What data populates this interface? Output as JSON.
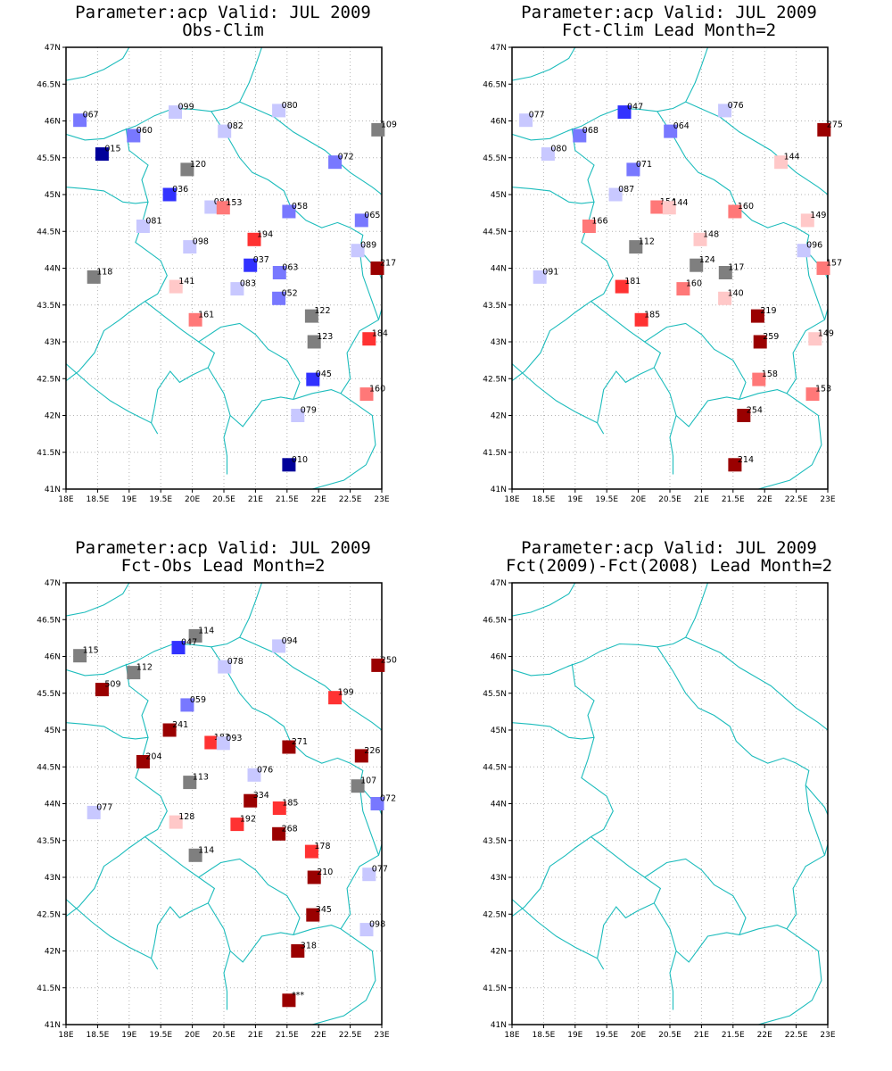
{
  "chart_data": [
    {
      "type": "scatter",
      "title": "Parameter:acp Valid: JUL 2009",
      "subtitle": "Obs-Clim",
      "xlim": [
        18,
        23
      ],
      "ylim": [
        41,
        47
      ],
      "xticks": [
        "18E",
        "18.5E",
        "19E",
        "19.5E",
        "20E",
        "20.5E",
        "21E",
        "21.5E",
        "22E",
        "22.5E",
        "23E"
      ],
      "yticks": [
        "41N",
        "41.5N",
        "42N",
        "42.5N",
        "43N",
        "43.5N",
        "44N",
        "44.5N",
        "45N",
        "45.5N",
        "46N",
        "46.5N",
        "47N"
      ],
      "grid": true,
      "points": [
        {
          "lon": 18.22,
          "lat": 46.01,
          "label": "067",
          "color": "#7878ff"
        },
        {
          "lon": 19.73,
          "lat": 46.12,
          "label": "099",
          "color": "#c8c8ff"
        },
        {
          "lon": 21.37,
          "lat": 46.14,
          "label": "080",
          "color": "#c8c8ff"
        },
        {
          "lon": 22.94,
          "lat": 45.88,
          "label": "109",
          "color": "#7f7f7f"
        },
        {
          "lon": 19.07,
          "lat": 45.8,
          "label": "060",
          "color": "#7878ff"
        },
        {
          "lon": 20.51,
          "lat": 45.86,
          "label": "082",
          "color": "#c8c8ff"
        },
        {
          "lon": 18.57,
          "lat": 45.55,
          "label": "015",
          "color": "#00009a"
        },
        {
          "lon": 19.92,
          "lat": 45.34,
          "label": "120",
          "color": "#7f7f7f"
        },
        {
          "lon": 22.26,
          "lat": 45.44,
          "label": "072",
          "color": "#7878ff"
        },
        {
          "lon": 19.64,
          "lat": 45.0,
          "label": "036",
          "color": "#3232ff"
        },
        {
          "lon": 20.3,
          "lat": 44.83,
          "label": "084",
          "color": "#c8c8ff"
        },
        {
          "lon": 20.49,
          "lat": 44.82,
          "label": "153",
          "color": "#ff7878"
        },
        {
          "lon": 21.53,
          "lat": 44.77,
          "label": "058",
          "color": "#7878ff"
        },
        {
          "lon": 22.68,
          "lat": 44.65,
          "label": "065",
          "color": "#7878ff"
        },
        {
          "lon": 19.22,
          "lat": 44.57,
          "label": "081",
          "color": "#c8c8ff"
        },
        {
          "lon": 20.98,
          "lat": 44.39,
          "label": "194",
          "color": "#ff3232"
        },
        {
          "lon": 19.96,
          "lat": 44.29,
          "label": "098",
          "color": "#c8c8ff"
        },
        {
          "lon": 22.62,
          "lat": 44.24,
          "label": "089",
          "color": "#c8c8ff"
        },
        {
          "lon": 20.92,
          "lat": 44.04,
          "label": "037",
          "color": "#3232ff"
        },
        {
          "lon": 21.38,
          "lat": 43.94,
          "label": "063",
          "color": "#7878ff"
        },
        {
          "lon": 22.93,
          "lat": 44.0,
          "label": "217",
          "color": "#9a0000"
        },
        {
          "lon": 18.44,
          "lat": 43.88,
          "label": "118",
          "color": "#7f7f7f"
        },
        {
          "lon": 19.74,
          "lat": 43.75,
          "label": "141",
          "color": "#ffc8c8"
        },
        {
          "lon": 20.71,
          "lat": 43.72,
          "label": "083",
          "color": "#c8c8ff"
        },
        {
          "lon": 21.37,
          "lat": 43.59,
          "label": "052",
          "color": "#7878ff"
        },
        {
          "lon": 21.89,
          "lat": 43.35,
          "label": "122",
          "color": "#7f7f7f"
        },
        {
          "lon": 20.05,
          "lat": 43.3,
          "label": "161",
          "color": "#ff7878"
        },
        {
          "lon": 21.93,
          "lat": 43.0,
          "label": "123",
          "color": "#7f7f7f"
        },
        {
          "lon": 22.8,
          "lat": 43.04,
          "label": "184",
          "color": "#ff3232"
        },
        {
          "lon": 21.91,
          "lat": 42.49,
          "label": "045",
          "color": "#3232ff"
        },
        {
          "lon": 22.76,
          "lat": 42.29,
          "label": "160",
          "color": "#ff7878"
        },
        {
          "lon": 21.67,
          "lat": 42.0,
          "label": "079",
          "color": "#c8c8ff"
        },
        {
          "lon": 21.53,
          "lat": 41.33,
          "label": "010",
          "color": "#00009a"
        }
      ]
    },
    {
      "type": "scatter",
      "title": "Parameter:acp Valid: JUL 2009",
      "subtitle": "Fct-Clim Lead Month=2",
      "xlim": [
        18,
        23
      ],
      "ylim": [
        41,
        47
      ],
      "xticks": [
        "18E",
        "18.5E",
        "19E",
        "19.5E",
        "20E",
        "20.5E",
        "21E",
        "21.5E",
        "22E",
        "22.5E",
        "23E"
      ],
      "yticks": [
        "41N",
        "41.5N",
        "42N",
        "42.5N",
        "43N",
        "43.5N",
        "44N",
        "44.5N",
        "45N",
        "45.5N",
        "46N",
        "46.5N",
        "47N"
      ],
      "grid": true,
      "points": [
        {
          "lon": 18.22,
          "lat": 46.01,
          "label": "077",
          "color": "#c8c8ff"
        },
        {
          "lon": 19.78,
          "lat": 46.12,
          "label": "047",
          "color": "#3232ff"
        },
        {
          "lon": 21.37,
          "lat": 46.14,
          "label": "076",
          "color": "#c8c8ff"
        },
        {
          "lon": 22.94,
          "lat": 45.88,
          "label": "275",
          "color": "#9a0000"
        },
        {
          "lon": 19.07,
          "lat": 45.8,
          "label": "068",
          "color": "#7878ff"
        },
        {
          "lon": 20.51,
          "lat": 45.86,
          "label": "064",
          "color": "#7878ff"
        },
        {
          "lon": 18.57,
          "lat": 45.55,
          "label": "080",
          "color": "#c8c8ff"
        },
        {
          "lon": 19.92,
          "lat": 45.34,
          "label": "071",
          "color": "#7878ff"
        },
        {
          "lon": 22.26,
          "lat": 45.44,
          "label": "144",
          "color": "#ffc8c8"
        },
        {
          "lon": 19.64,
          "lat": 45.0,
          "label": "087",
          "color": "#c8c8ff"
        },
        {
          "lon": 20.3,
          "lat": 44.83,
          "label": "154",
          "color": "#ff7878"
        },
        {
          "lon": 20.49,
          "lat": 44.82,
          "label": "144",
          "color": "#ffc8c8"
        },
        {
          "lon": 21.53,
          "lat": 44.77,
          "label": "160",
          "color": "#ff7878"
        },
        {
          "lon": 22.68,
          "lat": 44.65,
          "label": "149",
          "color": "#ffc8c8"
        },
        {
          "lon": 19.22,
          "lat": 44.57,
          "label": "166",
          "color": "#ff7878"
        },
        {
          "lon": 20.98,
          "lat": 44.39,
          "label": "148",
          "color": "#ffc8c8"
        },
        {
          "lon": 19.96,
          "lat": 44.29,
          "label": "112",
          "color": "#7f7f7f"
        },
        {
          "lon": 22.62,
          "lat": 44.24,
          "label": "096",
          "color": "#c8c8ff"
        },
        {
          "lon": 20.92,
          "lat": 44.04,
          "label": "124",
          "color": "#7f7f7f"
        },
        {
          "lon": 21.38,
          "lat": 43.94,
          "label": "117",
          "color": "#7f7f7f"
        },
        {
          "lon": 22.93,
          "lat": 44.0,
          "label": "157",
          "color": "#ff7878"
        },
        {
          "lon": 18.44,
          "lat": 43.88,
          "label": "091",
          "color": "#c8c8ff"
        },
        {
          "lon": 19.74,
          "lat": 43.75,
          "label": "181",
          "color": "#ff3232"
        },
        {
          "lon": 20.71,
          "lat": 43.72,
          "label": "160",
          "color": "#ff7878"
        },
        {
          "lon": 21.37,
          "lat": 43.59,
          "label": "140",
          "color": "#ffc8c8"
        },
        {
          "lon": 21.89,
          "lat": 43.35,
          "label": "219",
          "color": "#9a0000"
        },
        {
          "lon": 20.05,
          "lat": 43.3,
          "label": "185",
          "color": "#ff3232"
        },
        {
          "lon": 21.93,
          "lat": 43.0,
          "label": "259",
          "color": "#9a0000"
        },
        {
          "lon": 22.8,
          "lat": 43.04,
          "label": "149",
          "color": "#ffc8c8"
        },
        {
          "lon": 21.91,
          "lat": 42.49,
          "label": "158",
          "color": "#ff7878"
        },
        {
          "lon": 22.76,
          "lat": 42.29,
          "label": "153",
          "color": "#ff7878"
        },
        {
          "lon": 21.67,
          "lat": 42.0,
          "label": "254",
          "color": "#9a0000"
        },
        {
          "lon": 21.53,
          "lat": 41.33,
          "label": "214",
          "color": "#9a0000"
        }
      ]
    },
    {
      "type": "scatter",
      "title": "Parameter:acp Valid: JUL 2009",
      "subtitle": "Fct-Obs Lead Month=2",
      "xlim": [
        18,
        23
      ],
      "ylim": [
        41,
        47
      ],
      "xticks": [
        "18E",
        "18.5E",
        "19E",
        "19.5E",
        "20E",
        "20.5E",
        "21E",
        "21.5E",
        "22E",
        "22.5E",
        "23E"
      ],
      "yticks": [
        "41N",
        "41.5N",
        "42N",
        "42.5N",
        "43N",
        "43.5N",
        "44N",
        "44.5N",
        "45N",
        "45.5N",
        "46N",
        "46.5N",
        "47N"
      ],
      "grid": true,
      "points": [
        {
          "lon": 18.22,
          "lat": 46.01,
          "label": "115",
          "color": "#7f7f7f"
        },
        {
          "lon": 20.05,
          "lat": 46.28,
          "label": "114",
          "color": "#7f7f7f"
        },
        {
          "lon": 19.78,
          "lat": 46.12,
          "label": "047",
          "color": "#3232ff"
        },
        {
          "lon": 21.37,
          "lat": 46.14,
          "label": "094",
          "color": "#c8c8ff"
        },
        {
          "lon": 22.94,
          "lat": 45.88,
          "label": "250",
          "color": "#9a0000"
        },
        {
          "lon": 19.07,
          "lat": 45.78,
          "label": "112",
          "color": "#7f7f7f"
        },
        {
          "lon": 20.51,
          "lat": 45.86,
          "label": "078",
          "color": "#c8c8ff"
        },
        {
          "lon": 18.57,
          "lat": 45.55,
          "label": "509",
          "color": "#9a0000"
        },
        {
          "lon": 19.92,
          "lat": 45.34,
          "label": "059",
          "color": "#7878ff"
        },
        {
          "lon": 22.26,
          "lat": 45.44,
          "label": "199",
          "color": "#ff3232"
        },
        {
          "lon": 19.64,
          "lat": 45.0,
          "label": "241",
          "color": "#9a0000"
        },
        {
          "lon": 20.3,
          "lat": 44.83,
          "label": "183",
          "color": "#ff3232"
        },
        {
          "lon": 20.49,
          "lat": 44.82,
          "label": "093",
          "color": "#c8c8ff"
        },
        {
          "lon": 21.53,
          "lat": 44.77,
          "label": "271",
          "color": "#9a0000"
        },
        {
          "lon": 22.68,
          "lat": 44.65,
          "label": "226",
          "color": "#9a0000"
        },
        {
          "lon": 19.22,
          "lat": 44.57,
          "label": "204",
          "color": "#9a0000"
        },
        {
          "lon": 20.98,
          "lat": 44.39,
          "label": "076",
          "color": "#c8c8ff"
        },
        {
          "lon": 19.96,
          "lat": 44.29,
          "label": "113",
          "color": "#7f7f7f"
        },
        {
          "lon": 22.62,
          "lat": 44.24,
          "label": "107",
          "color": "#7f7f7f"
        },
        {
          "lon": 20.92,
          "lat": 44.04,
          "label": "334",
          "color": "#9a0000"
        },
        {
          "lon": 21.38,
          "lat": 43.94,
          "label": "185",
          "color": "#ff3232"
        },
        {
          "lon": 22.93,
          "lat": 44.0,
          "label": "072",
          "color": "#7878ff"
        },
        {
          "lon": 18.44,
          "lat": 43.88,
          "label": "077",
          "color": "#c8c8ff"
        },
        {
          "lon": 19.74,
          "lat": 43.75,
          "label": "128",
          "color": "#ffc8c8"
        },
        {
          "lon": 20.71,
          "lat": 43.72,
          "label": "192",
          "color": "#ff3232"
        },
        {
          "lon": 21.37,
          "lat": 43.59,
          "label": "268",
          "color": "#9a0000"
        },
        {
          "lon": 21.89,
          "lat": 43.35,
          "label": "178",
          "color": "#ff3232"
        },
        {
          "lon": 20.05,
          "lat": 43.3,
          "label": "114",
          "color": "#7f7f7f"
        },
        {
          "lon": 21.93,
          "lat": 43.0,
          "label": "210",
          "color": "#9a0000"
        },
        {
          "lon": 22.8,
          "lat": 43.04,
          "label": "077",
          "color": "#c8c8ff"
        },
        {
          "lon": 21.91,
          "lat": 42.49,
          "label": "345",
          "color": "#9a0000"
        },
        {
          "lon": 22.76,
          "lat": 42.29,
          "label": "098",
          "color": "#c8c8ff"
        },
        {
          "lon": 21.67,
          "lat": 42.0,
          "label": "318",
          "color": "#9a0000"
        },
        {
          "lon": 21.53,
          "lat": 41.33,
          "label": "***",
          "color": "#9a0000"
        }
      ]
    },
    {
      "type": "scatter",
      "title": "Parameter:acp Valid: JUL 2009",
      "subtitle": "Fct(2009)-Fct(2008) Lead Month=2",
      "xlim": [
        18,
        23
      ],
      "ylim": [
        41,
        47
      ],
      "xticks": [
        "18E",
        "18.5E",
        "19E",
        "19.5E",
        "20E",
        "20.5E",
        "21E",
        "21.5E",
        "22E",
        "22.5E",
        "23E"
      ],
      "yticks": [
        "41N",
        "41.5N",
        "42N",
        "42.5N",
        "43N",
        "43.5N",
        "44N",
        "44.5N",
        "45N",
        "45.5N",
        "46N",
        "46.5N",
        "47N"
      ],
      "grid": true,
      "points": []
    }
  ],
  "style": {
    "map_line_color": "#1cbcbc",
    "grid_color": "#b4b4b4",
    "frame_color": "#000000"
  }
}
